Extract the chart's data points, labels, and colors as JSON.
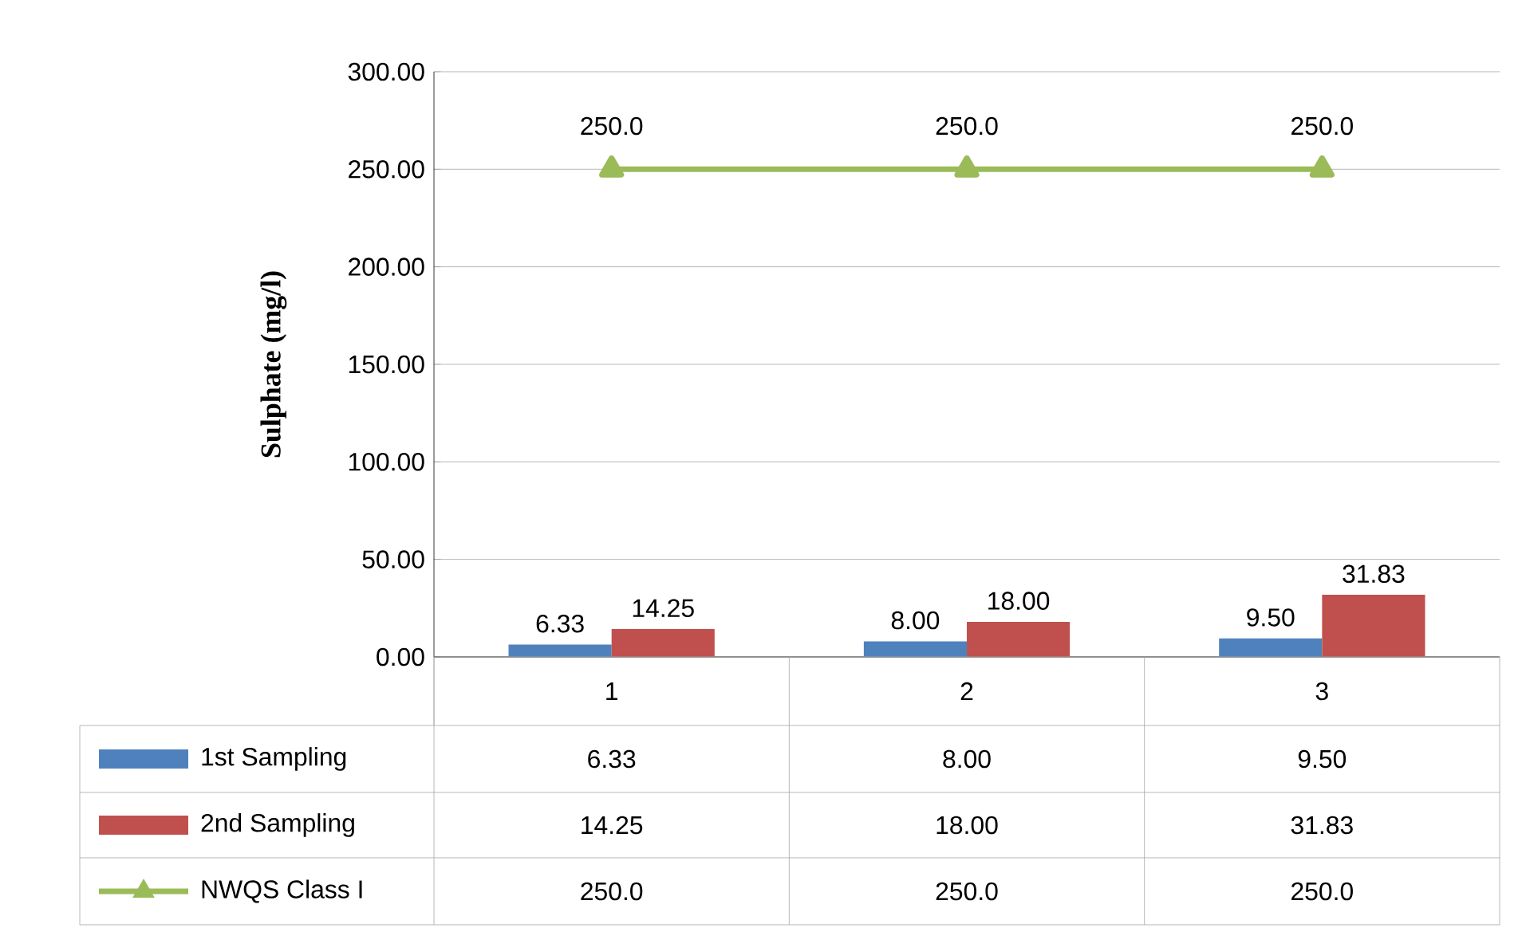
{
  "chart_data": {
    "type": "bar",
    "ylabel": "Sulphate (mg/l)",
    "categories": [
      "1",
      "2",
      "3"
    ],
    "series": [
      {
        "name": "1st Sampling",
        "color": "#4f81bd",
        "values": [
          6.33,
          8.0,
          9.5
        ],
        "value_labels": [
          "6.33",
          "8.00",
          "9.50"
        ]
      },
      {
        "name": "2nd Sampling",
        "color": "#c0504d",
        "values": [
          14.25,
          18.0,
          31.83
        ],
        "value_labels": [
          "14.25",
          "18.00",
          "31.83"
        ]
      },
      {
        "name": "NWQS Class I",
        "type": "line",
        "color": "#9bbb59",
        "marker": "triangle",
        "values": [
          250,
          250,
          250
        ],
        "value_labels": [
          "250.0",
          "250.0",
          "250.0"
        ]
      }
    ],
    "ylim": [
      0,
      300
    ],
    "yticks": [
      {
        "value": 0,
        "label": "0.00"
      },
      {
        "value": 50,
        "label": "50.00"
      },
      {
        "value": 100,
        "label": "100.00"
      },
      {
        "value": 150,
        "label": "150.00"
      },
      {
        "value": 200,
        "label": "200.00"
      },
      {
        "value": 250,
        "label": "250.00"
      },
      {
        "value": 300,
        "label": "300.00"
      }
    ],
    "grid": "y",
    "legend": "bottom"
  }
}
